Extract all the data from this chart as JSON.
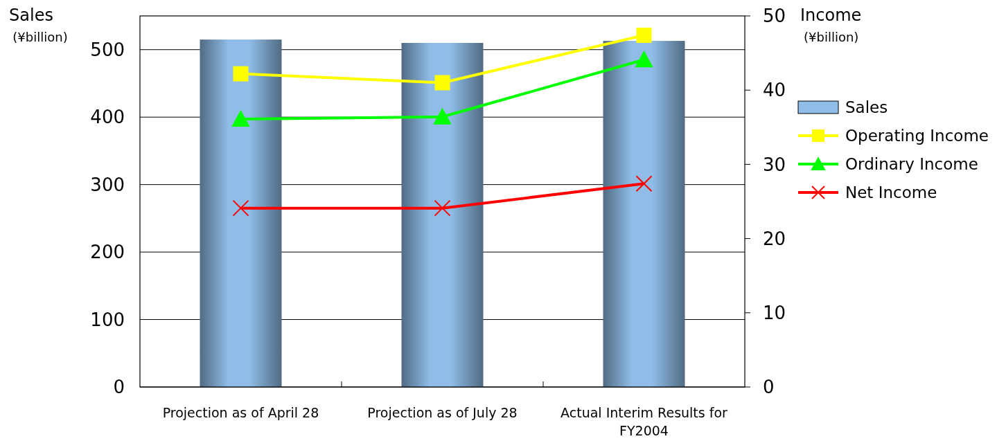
{
  "chart_data": {
    "type": "bar",
    "categories": [
      "Projection as of April 28",
      "Projection as of July 28",
      "Actual Interim Results for FY2004"
    ],
    "ylabel": "Sales\n(¥billion)",
    "y2label": "Income\n(¥billion)",
    "ylim": [
      0,
      550
    ],
    "yticks": [
      0,
      100,
      200,
      300,
      400,
      500
    ],
    "y2lim": [
      0,
      50
    ],
    "y2ticks": [
      0,
      10,
      20,
      30,
      40,
      50
    ],
    "grid": "y",
    "legend": "right",
    "series": [
      {
        "name": "Sales",
        "color": "#8fbde8",
        "values": [
          515,
          510,
          513
        ]
      },
      {
        "name": "Operating Income",
        "type": "line",
        "axis": "y2",
        "color": "#ffff00",
        "marker": "square",
        "values": [
          42.2,
          41.0,
          47.4
        ]
      },
      {
        "name": "Ordinary Income",
        "type": "line",
        "axis": "y2",
        "color": "#00ff00",
        "marker": "triangle",
        "values": [
          36.1,
          36.4,
          44.1
        ]
      },
      {
        "name": "Net Income",
        "type": "line",
        "axis": "y2",
        "color": "#ff0000",
        "marker": "cross",
        "values": [
          24.1,
          24.1,
          27.4
        ]
      }
    ]
  }
}
